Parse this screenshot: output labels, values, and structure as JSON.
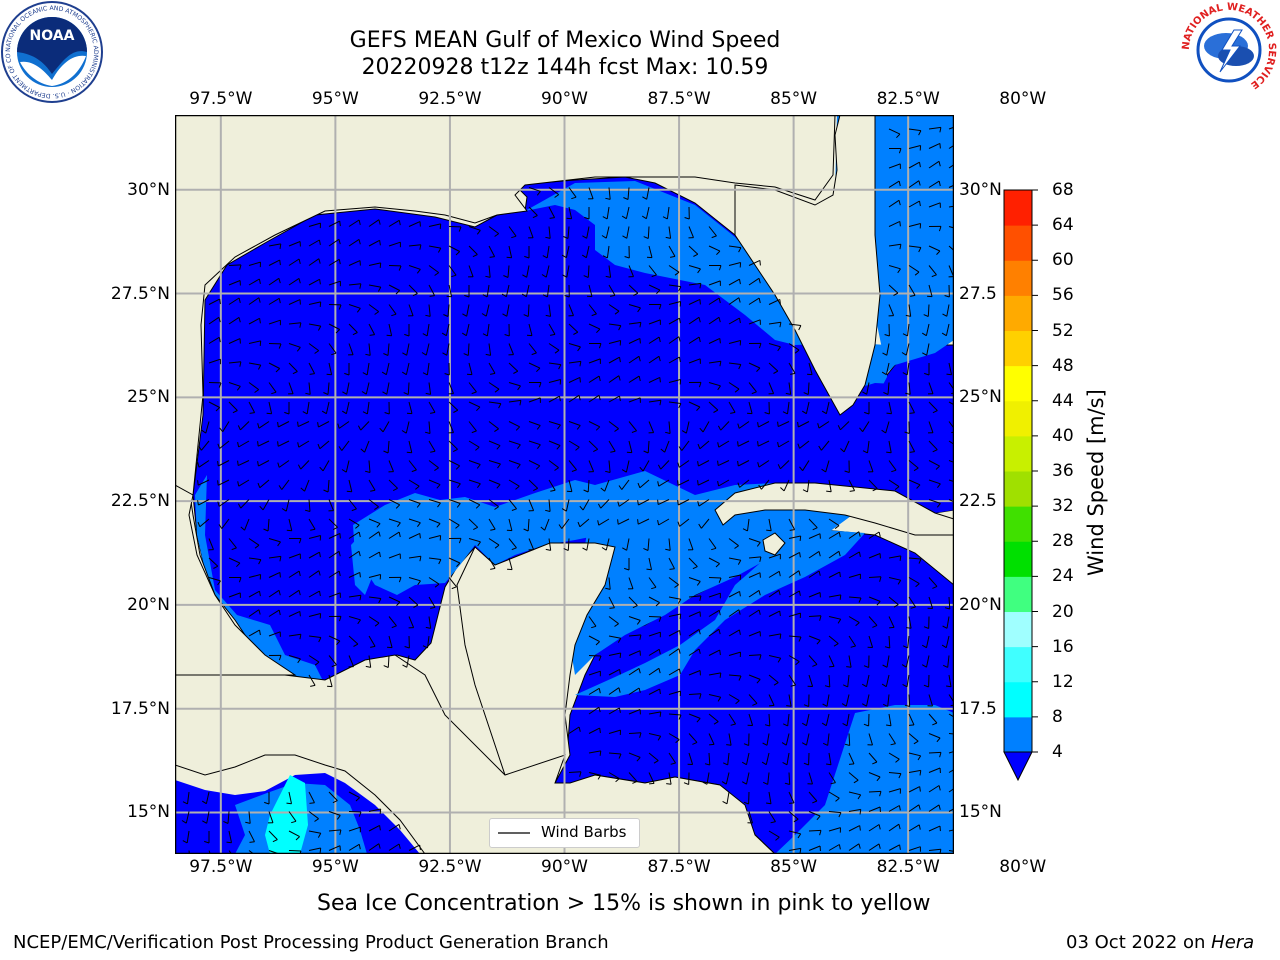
{
  "title": {
    "line1": "GEFS MEAN Gulf of Mexico Wind Speed",
    "line2": "20220928 t12z 144h fcst   Max: 10.59"
  },
  "map": {
    "lon_range": [
      -98.5,
      -81.5
    ],
    "lat_range": [
      14.0,
      31.8
    ],
    "lon_ticks": [
      {
        "lon": -97.5,
        "label": "97.5°W"
      },
      {
        "lon": -95.0,
        "label": "95°W"
      },
      {
        "lon": -92.5,
        "label": "92.5°W"
      },
      {
        "lon": -90.0,
        "label": "90°W"
      },
      {
        "lon": -87.5,
        "label": "87.5°W"
      },
      {
        "lon": -85.0,
        "label": "85°W"
      },
      {
        "lon": -82.5,
        "label": "82.5°W"
      },
      {
        "lon": -80.0,
        "label": "80°W"
      }
    ],
    "lat_ticks_left": [
      {
        "lat": 30.0,
        "label": "30°N"
      },
      {
        "lat": 27.5,
        "label": "27.5°N"
      },
      {
        "lat": 25.0,
        "label": "25°N"
      },
      {
        "lat": 22.5,
        "label": "22.5°N"
      },
      {
        "lat": 20.0,
        "label": "20°N"
      },
      {
        "lat": 17.5,
        "label": "17.5°N"
      },
      {
        "lat": 15.0,
        "label": "15°N"
      }
    ],
    "lat_ticks_right": [
      {
        "lat": 30.0,
        "label": "30°N"
      },
      {
        "lat": 27.5,
        "label": "27.5"
      },
      {
        "lat": 25.0,
        "label": "25°N"
      },
      {
        "lat": 22.5,
        "label": "22.5"
      },
      {
        "lat": 20.0,
        "label": "20°N"
      },
      {
        "lat": 17.5,
        "label": "17.5"
      },
      {
        "lat": 15.0,
        "label": "15°N"
      }
    ],
    "land_color": "#efefdb",
    "ocean_colors": {
      "4-8": "#0000ff",
      "8-12": "#0080ff",
      "12-16": "#00ffff"
    },
    "legend_label": "Wind Barbs"
  },
  "colorbar": {
    "label": "Wind Speed [m/s]",
    "levels": [
      4,
      8,
      12,
      16,
      20,
      24,
      28,
      32,
      36,
      40,
      44,
      48,
      52,
      56,
      60,
      64,
      68
    ],
    "colors": [
      "#0080ff",
      "#00ffff",
      "#40ffff",
      "#a0ffff",
      "#40ff80",
      "#00e000",
      "#40e000",
      "#a0e000",
      "#c8f000",
      "#f0f000",
      "#ffff00",
      "#ffd000",
      "#ffaa00",
      "#ff8000",
      "#ff5000",
      "#ff2000"
    ],
    "extend_color": "#0000ff"
  },
  "caption": "Sea Ice Concentration > 15% is shown in pink to yellow",
  "footer": {
    "left": "NCEP/EMC/Verification Post Processing Product Generation Branch",
    "right_date": "03 Oct 2022 on ",
    "right_machine": "Hera"
  },
  "logos": {
    "left_text": "NOAA",
    "left_ring": "NATIONAL OCEANIC AND ATMOSPHERIC ADMINISTRATION · U.S. DEPARTMENT OF COMMERCE",
    "right_ring": "NATIONAL WEATHER SERVICE"
  }
}
